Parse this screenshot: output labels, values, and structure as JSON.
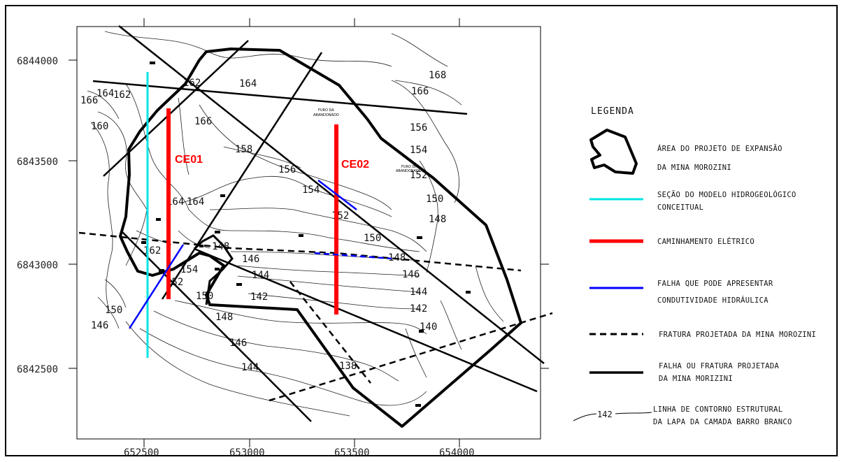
{
  "axes": {
    "y_ticks": [
      "6844000",
      "6843500",
      "6843000",
      "6842500"
    ],
    "x_ticks": [
      "652500",
      "653000",
      "653500",
      "654000"
    ]
  },
  "contours": {
    "labels": [
      "166",
      "164",
      "162",
      "160",
      "158",
      "156",
      "154",
      "152",
      "150",
      "148",
      "146",
      "144",
      "142",
      "140",
      "138",
      "168",
      "166",
      "164",
      "162",
      "166",
      "158",
      "156",
      "154",
      "152",
      "150",
      "148",
      "146",
      "144",
      "142",
      "164",
      "162",
      "158",
      "156",
      "154",
      "150",
      "146",
      "148",
      "146",
      "144"
    ]
  },
  "lines": {
    "ce01": "CE01",
    "ce02": "CE02"
  },
  "annotations": {
    "furo_1_a": "FURO DA",
    "furo_1_b": "ABANDONADO",
    "furo_2_a": "FURO DA",
    "furo_2_b": "ABANDONADO"
  },
  "legend": {
    "title": "LEGENDA",
    "area_1": "ÁREA DO PROJETO DE EXPANSÃO",
    "area_2": "DA MINA MOROZINI",
    "secao_1": "SEÇÃO DO MODELO HIDROGEOLÓGICO",
    "secao_2": "CONCEITUAL",
    "caminhamento": "CAMINHAMENTO ELÉTRICO",
    "falha_1": "FALHA QUE PODE APRESENTAR",
    "falha_2": "CONDUTIVIDADE HIDRÁULICA",
    "fratura": "FRATURA PROJETADA DA MINA MOROZINI",
    "falha_proj_1": "FALHA OU FRATURA PROJETADA",
    "falha_proj_2": "DA MINA MORIZINI",
    "contorno_sample": "142",
    "contorno_1": "LINHA DE CONTORNO ESTRUTURAL",
    "contorno_2": "DA LAPA DA CAMADA BARRO BRANCO"
  },
  "colors": {
    "section_line": "#00e5e5",
    "electric_line": "#ff0000",
    "fault_blue": "#0000ff",
    "ink": "#000000"
  }
}
